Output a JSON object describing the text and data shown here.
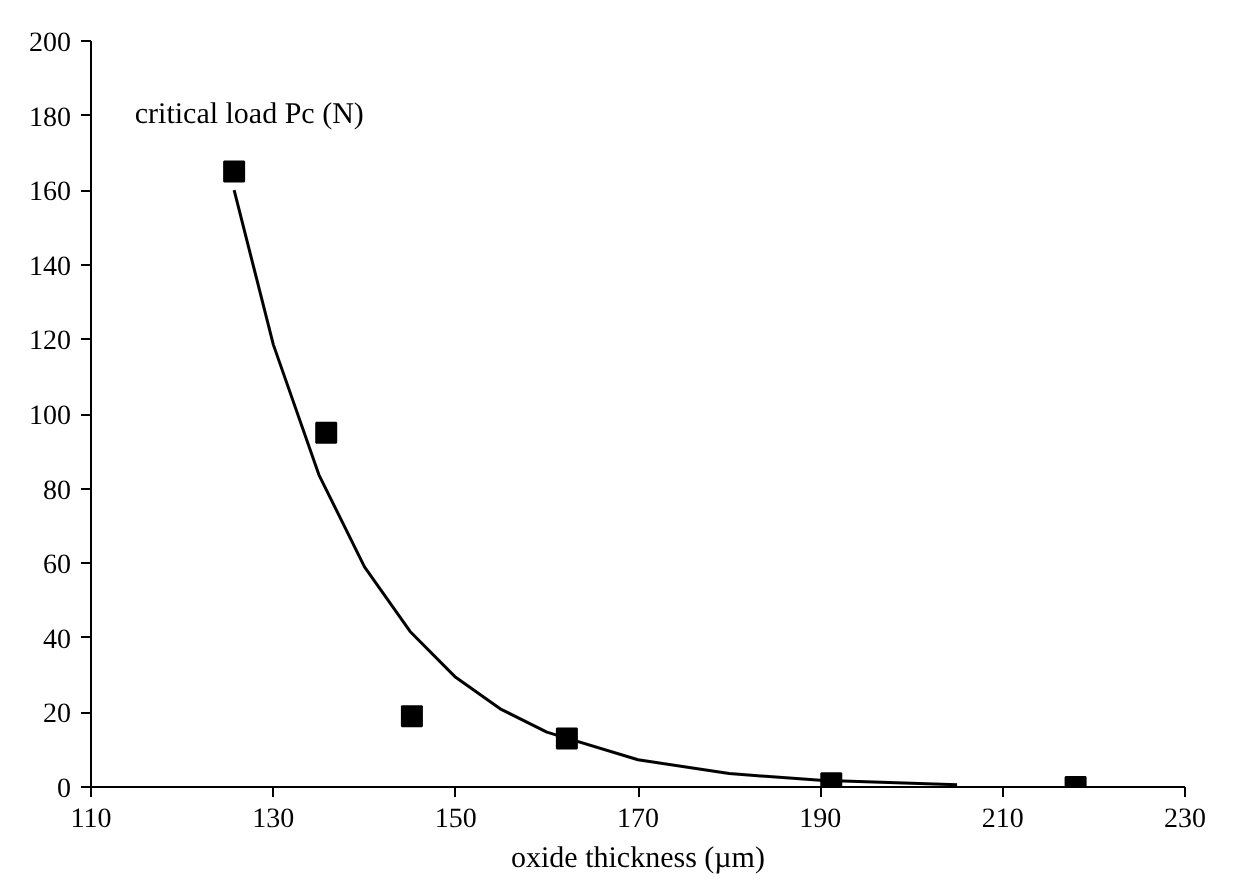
{
  "chart_data": {
    "type": "scatter",
    "xlabel": "oxide thickness (µm)",
    "ylabel": "critical load Pc (N)",
    "xlim": [
      110,
      230
    ],
    "ylim": [
      0,
      200
    ],
    "xticks": [
      110,
      130,
      150,
      170,
      190,
      210,
      230
    ],
    "yticks": [
      0,
      20,
      40,
      60,
      80,
      100,
      120,
      140,
      160,
      180,
      200
    ],
    "grid": false,
    "marker": "square",
    "series": [
      {
        "color": "#000000",
        "x": [
          125.7,
          135.8,
          145.2,
          162.2,
          191.2,
          218
        ],
        "values": [
          165,
          95,
          19,
          13,
          1,
          0
        ]
      },
      {
        "type": "line",
        "color": "#000000",
        "line_style": "solid",
        "marker": "none",
        "x": [
          125.7,
          130,
          135,
          140,
          145,
          150,
          155,
          160,
          170,
          180,
          190,
          205
        ],
        "values": [
          160,
          118.6,
          83.7,
          59,
          41.7,
          29.4,
          20.8,
          14.7,
          7.3,
          3.6,
          1.8,
          0.6
        ]
      }
    ]
  }
}
